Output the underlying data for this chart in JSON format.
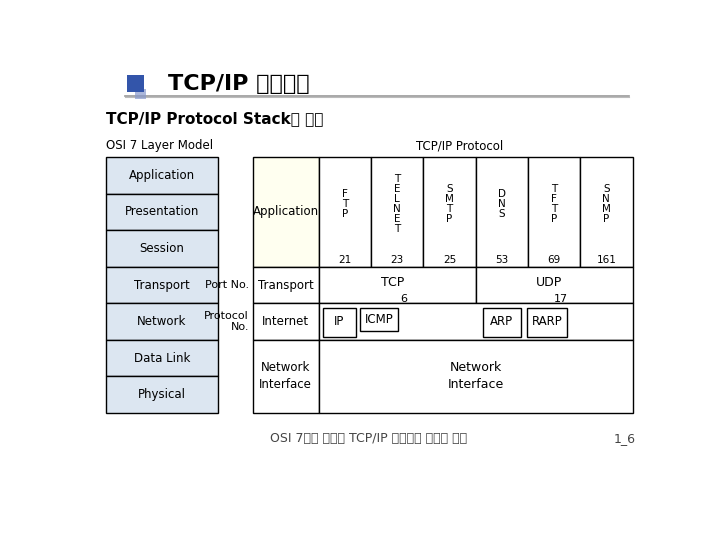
{
  "title": "TCP/IP 프로토콜",
  "subtitle": "TCP/IP Protocol Stack별 기능",
  "osi_label": "OSI 7 Layer Model",
  "tcpip_label": "TCP/IP Protocol",
  "osi_layers": [
    "Application",
    "Presentation",
    "Session",
    "Transport",
    "Network",
    "Data Link",
    "Physical"
  ],
  "port_no_label": "Port No.",
  "protocol_no_label": "Protocol\nNo.",
  "app_protocols": [
    {
      "name": "F\nT\nP",
      "port": "21"
    },
    {
      "name": "T\nE\nL\nN\nE\nT",
      "port": "23"
    },
    {
      "name": "S\nM\nT\nP",
      "port": "25"
    },
    {
      "name": "D\nN\nS",
      "port": "53"
    },
    {
      "name": "T\nF\nT\nP",
      "port": "69"
    },
    {
      "name": "S\nN\nM\nP",
      "port": "161"
    }
  ],
  "footer": "OSI 7계층 모델과 TCP/IP 프로토콜 모델의 비교",
  "page": "1_6",
  "bg_color": "#ffffff",
  "osi_box_color": "#dce6f1",
  "app_box_color": "#fffff0",
  "border_color": "#000000",
  "title_color": "#000000",
  "icon_color1": "#3355aa",
  "icon_color2": "#8899cc"
}
